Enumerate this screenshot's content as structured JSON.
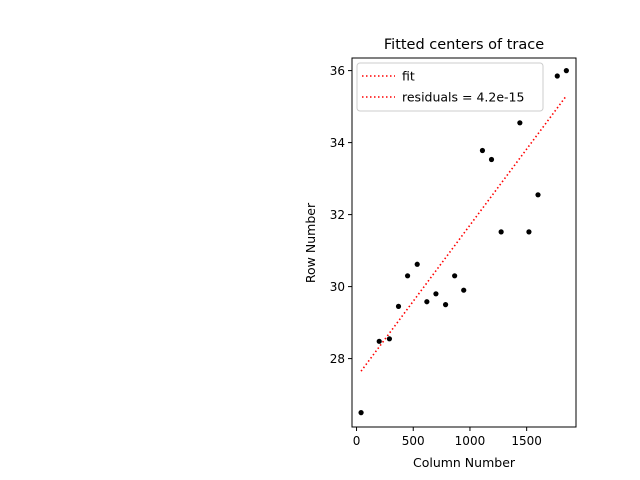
{
  "chart_data": {
    "type": "scatter",
    "title": "Fitted centers of trace",
    "xlabel": "Column Number",
    "ylabel": "Row Number",
    "xlim": [
      -40,
      1935
    ],
    "ylim": [
      26.1,
      36.35
    ],
    "xticks": [
      0,
      500,
      1000,
      1500
    ],
    "yticks": [
      28,
      30,
      32,
      34,
      36
    ],
    "xtick_labels": [
      "0",
      "500",
      "1000",
      "1500"
    ],
    "ytick_labels": [
      "28",
      "30",
      "32",
      "34",
      "36"
    ],
    "grid": false,
    "legend_position": "upper-left",
    "legend": [
      {
        "label": "fit",
        "color": "#ff0000",
        "style": "dotted"
      },
      {
        "label": "residuals = 4.2e-15",
        "color": "#ff0000",
        "style": "dotted"
      }
    ],
    "series": [
      {
        "kind": "points",
        "color": "#000000",
        "x": [
          40,
          200,
          290,
          370,
          450,
          535,
          620,
          700,
          785,
          865,
          945,
          1110,
          1190,
          1275,
          1440,
          1520,
          1600,
          1770,
          1850
        ],
        "y": [
          26.5,
          28.48,
          28.55,
          29.45,
          30.3,
          30.62,
          29.58,
          29.8,
          29.5,
          30.3,
          29.9,
          33.78,
          33.53,
          31.52,
          34.55,
          31.52,
          32.55,
          35.85,
          36.0
        ]
      },
      {
        "kind": "fit-line",
        "name": "fit",
        "color": "#ff0000",
        "x": [
          40,
          1850
        ],
        "y": [
          27.65,
          35.3
        ]
      }
    ]
  }
}
